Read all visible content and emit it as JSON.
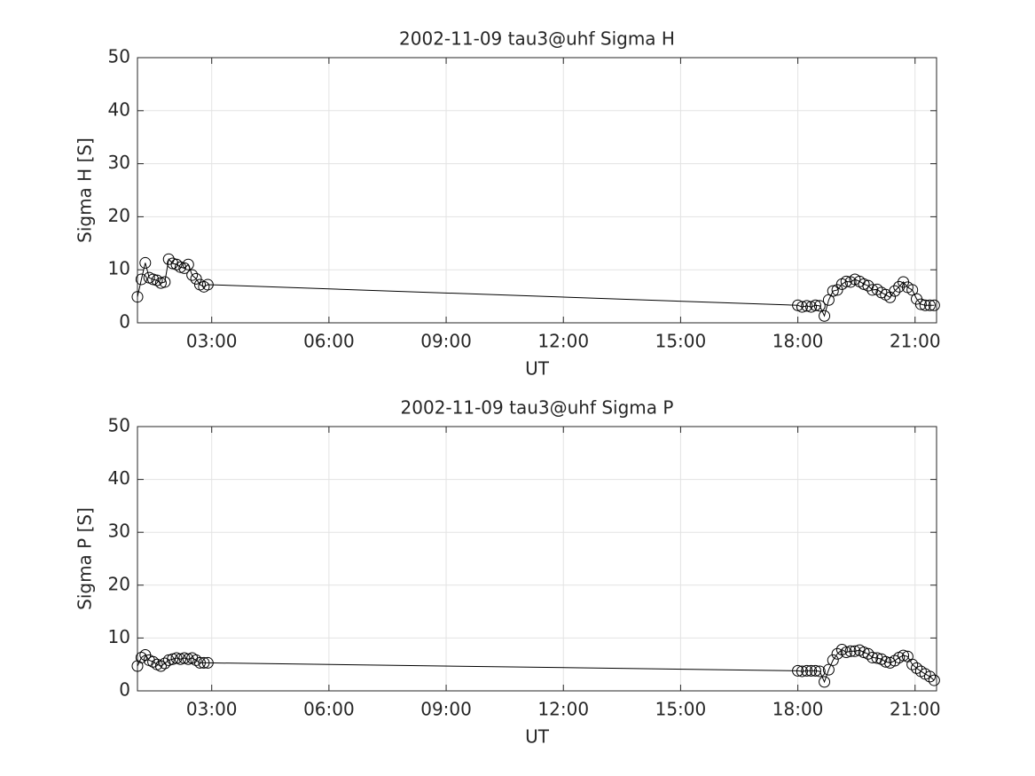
{
  "chart_data": [
    {
      "type": "line",
      "title": "2002-11-09  tau3@uhf Sigma H",
      "xlabel": "UT",
      "ylabel": "Sigma H [S]",
      "x": [
        1.1,
        1.2,
        1.3,
        1.4,
        1.5,
        1.6,
        1.7,
        1.8,
        1.9,
        2.0,
        2.1,
        2.2,
        2.3,
        2.4,
        2.5,
        2.6,
        2.7,
        2.8,
        2.9,
        18.0,
        18.11,
        18.23,
        18.34,
        18.45,
        18.56,
        18.68,
        18.79,
        18.9,
        19.01,
        19.13,
        19.24,
        19.35,
        19.46,
        19.58,
        19.69,
        19.8,
        19.91,
        20.03,
        20.14,
        20.25,
        20.36,
        20.48,
        20.59,
        20.7,
        20.81,
        20.93,
        21.04,
        21.15,
        21.26,
        21.38,
        21.49
      ],
      "values": [
        4.9,
        8.2,
        11.3,
        8.5,
        8.2,
        8.0,
        7.5,
        7.7,
        12.0,
        11.2,
        11.0,
        10.5,
        10.3,
        11.0,
        9.0,
        8.3,
        7.2,
        6.8,
        7.2,
        3.3,
        3.0,
        3.2,
        3.0,
        3.3,
        3.2,
        1.3,
        4.3,
        6.0,
        6.2,
        7.3,
        7.8,
        7.7,
        8.2,
        7.8,
        7.3,
        7.0,
        6.2,
        6.3,
        5.7,
        5.3,
        4.8,
        6.0,
        6.8,
        7.7,
        6.7,
        6.2,
        4.5,
        3.5,
        3.3,
        3.3,
        3.3
      ],
      "color": "#000000",
      "marker": "circle",
      "xlim": [
        1.1,
        21.55
      ],
      "ylim": [
        0,
        50
      ],
      "xticks": [
        {
          "value": 3,
          "label": "03:00"
        },
        {
          "value": 6,
          "label": "06:00"
        },
        {
          "value": 9,
          "label": "09:00"
        },
        {
          "value": 12,
          "label": "12:00"
        },
        {
          "value": 15,
          "label": "15:00"
        },
        {
          "value": 18,
          "label": "18:00"
        },
        {
          "value": 21,
          "label": "21:00"
        }
      ],
      "yticks": [
        0,
        10,
        20,
        30,
        40,
        50
      ],
      "grid": true
    },
    {
      "type": "line",
      "title": "2002-11-09  tau3@uhf Sigma P",
      "xlabel": "UT",
      "ylabel": "Sigma P [S]",
      "x": [
        1.1,
        1.2,
        1.3,
        1.4,
        1.5,
        1.6,
        1.7,
        1.8,
        1.9,
        2.0,
        2.1,
        2.2,
        2.3,
        2.4,
        2.5,
        2.6,
        2.7,
        2.8,
        2.9,
        18.0,
        18.11,
        18.23,
        18.34,
        18.45,
        18.56,
        18.68,
        18.79,
        18.9,
        19.01,
        19.13,
        19.24,
        19.35,
        19.46,
        19.58,
        19.69,
        19.8,
        19.91,
        20.03,
        20.14,
        20.25,
        20.36,
        20.48,
        20.59,
        20.7,
        20.81,
        20.93,
        21.04,
        21.15,
        21.26,
        21.38,
        21.49
      ],
      "values": [
        4.7,
        6.3,
        6.8,
        5.8,
        5.5,
        5.0,
        4.7,
        5.2,
        5.8,
        6.0,
        6.2,
        6.0,
        6.2,
        6.0,
        6.2,
        5.8,
        5.3,
        5.3,
        5.3,
        3.8,
        3.7,
        3.8,
        3.8,
        3.8,
        3.7,
        1.7,
        4.0,
        5.8,
        7.0,
        7.8,
        7.3,
        7.5,
        7.5,
        7.7,
        7.3,
        7.0,
        6.3,
        6.2,
        6.0,
        5.5,
        5.3,
        5.7,
        6.3,
        6.7,
        6.5,
        5.0,
        4.3,
        3.7,
        3.2,
        2.7,
        2.0
      ],
      "color": "#000000",
      "marker": "circle",
      "xlim": [
        1.1,
        21.55
      ],
      "ylim": [
        0,
        50
      ],
      "xticks": [
        {
          "value": 3,
          "label": "03:00"
        },
        {
          "value": 6,
          "label": "06:00"
        },
        {
          "value": 9,
          "label": "09:00"
        },
        {
          "value": 12,
          "label": "12:00"
        },
        {
          "value": 15,
          "label": "15:00"
        },
        {
          "value": 18,
          "label": "18:00"
        },
        {
          "value": 21,
          "label": "21:00"
        }
      ],
      "yticks": [
        0,
        10,
        20,
        30,
        40,
        50
      ],
      "grid": true
    }
  ]
}
